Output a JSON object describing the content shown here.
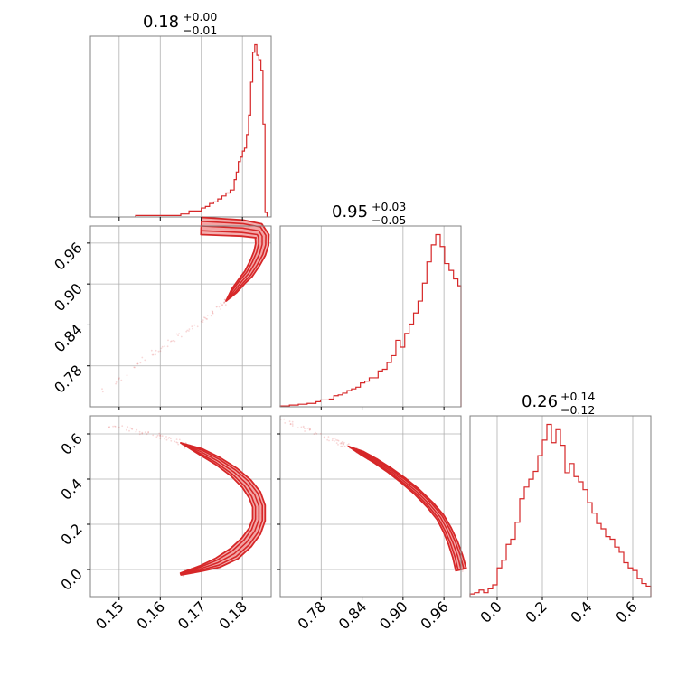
{
  "colors": {
    "series": "#d62728",
    "light": "#f2a0a0",
    "grid": "#b0b0b0",
    "frame": "#808080"
  },
  "chart_data": [
    {
      "type": "histogram",
      "panel": "1-1",
      "summary": {
        "median": "0.18",
        "plus": "+0.00",
        "minus": "−0.01"
      },
      "x_range": [
        0.143,
        0.187
      ],
      "x_ticks": [
        0.15,
        0.16,
        0.17,
        0.18
      ],
      "x_tick_labels": [
        "0.15",
        "0.16",
        "0.17",
        "0.18"
      ],
      "bins": {
        "edges": [
          0.154,
          0.165,
          0.167,
          0.17,
          0.171,
          0.172,
          0.173,
          0.174,
          0.175,
          0.176,
          0.177,
          0.178,
          0.1785,
          0.179,
          0.1795,
          0.18,
          0.1805,
          0.181,
          0.1815,
          0.182,
          0.1825,
          0.183,
          0.1835,
          0.184,
          0.1845,
          0.185,
          0.1855,
          0.186
        ],
        "counts": [
          1,
          2,
          4,
          6,
          7,
          9,
          10,
          12,
          14,
          16,
          18,
          25,
          30,
          37,
          40,
          44,
          46,
          55,
          68,
          90,
          110,
          115,
          108,
          105,
          98,
          62,
          3
        ]
      },
      "peak_count": 115
    },
    {
      "type": "histogram",
      "panel": "2-2",
      "summary": {
        "median": "0.95",
        "plus": "+0.03",
        "minus": "−0.05"
      },
      "x_range": [
        0.72,
        0.985
      ],
      "x_ticks": [
        0.78,
        0.84,
        0.9,
        0.96
      ],
      "x_tick_labels": [
        "0.78",
        "0.84",
        "0.90",
        "0.96"
      ],
      "bins": {
        "edges": [
          0.72,
          0.7335,
          0.74,
          0.7465,
          0.753,
          0.7595,
          0.766,
          0.7725,
          0.779,
          0.7855,
          0.792,
          0.7985,
          0.805,
          0.8115,
          0.818,
          0.8245,
          0.831,
          0.8375,
          0.844,
          0.8505,
          0.857,
          0.8635,
          0.87,
          0.8765,
          0.883,
          0.8895,
          0.896,
          0.9025,
          0.909,
          0.9155,
          0.922,
          0.9285,
          0.935,
          0.9415,
          0.948,
          0.9545,
          0.961,
          0.9675,
          0.974,
          0.9805,
          0.985
        ],
        "counts": [
          1,
          2,
          2,
          3,
          3,
          4,
          4,
          6,
          8,
          8,
          9,
          13,
          14,
          16,
          19,
          21,
          23,
          28,
          30,
          34,
          34,
          42,
          44,
          52,
          60,
          78,
          70,
          86,
          97,
          110,
          124,
          145,
          170,
          190,
          202,
          188,
          168,
          160,
          150,
          142
        ]
      },
      "peak_count": 202
    },
    {
      "type": "histogram",
      "panel": "3-3",
      "summary": {
        "median": "0.26",
        "plus": "+0.14",
        "minus": "−0.12"
      },
      "x_range": [
        -0.12,
        0.68
      ],
      "x_ticks": [
        0.0,
        0.2,
        0.4,
        0.6
      ],
      "x_tick_labels": [
        "0.0",
        "0.2",
        "0.4",
        "0.6"
      ],
      "bins": {
        "edges": [
          -0.12,
          -0.1,
          -0.08,
          -0.06,
          -0.04,
          -0.02,
          0.0,
          0.02,
          0.04,
          0.06,
          0.08,
          0.1,
          0.12,
          0.14,
          0.16,
          0.18,
          0.2,
          0.22,
          0.24,
          0.26,
          0.28,
          0.3,
          0.32,
          0.34,
          0.36,
          0.38,
          0.4,
          0.42,
          0.44,
          0.46,
          0.48,
          0.5,
          0.52,
          0.54,
          0.56,
          0.58,
          0.6,
          0.62,
          0.64,
          0.66,
          0.68
        ],
        "counts": [
          2,
          3,
          5,
          3,
          6,
          9,
          22,
          28,
          40,
          44,
          57,
          75,
          84,
          90,
          96,
          108,
          120,
          132,
          118,
          128,
          116,
          95,
          102,
          92,
          88,
          82,
          72,
          64,
          56,
          52,
          46,
          44,
          38,
          34,
          26,
          22,
          20,
          14,
          10,
          8
        ]
      },
      "peak_count": 132
    },
    {
      "type": "contour",
      "panel": "2-1",
      "x_range": [
        0.143,
        0.187
      ],
      "y_range": [
        0.72,
        0.985
      ],
      "y_ticks": [
        0.78,
        0.84,
        0.9,
        0.96
      ],
      "y_tick_labels": [
        "0.78",
        "0.84",
        "0.90",
        "0.96"
      ],
      "ridge": [
        [
          0.146,
          0.74
        ],
        [
          0.15,
          0.76
        ],
        [
          0.155,
          0.785
        ],
        [
          0.16,
          0.805
        ],
        [
          0.165,
          0.825
        ],
        [
          0.17,
          0.845
        ],
        [
          0.173,
          0.86
        ],
        [
          0.176,
          0.875
        ],
        [
          0.178,
          0.89
        ],
        [
          0.18,
          0.905
        ],
        [
          0.1815,
          0.915
        ],
        [
          0.183,
          0.93
        ],
        [
          0.1842,
          0.945
        ],
        [
          0.1848,
          0.958
        ],
        [
          0.1848,
          0.97
        ],
        [
          0.184,
          0.978
        ],
        [
          0.18,
          0.982
        ],
        [
          0.17,
          0.985
        ]
      ]
    },
    {
      "type": "contour",
      "panel": "3-1",
      "x_range": [
        0.143,
        0.187
      ],
      "y_range": [
        -0.12,
        0.68
      ],
      "y_ticks": [
        0.0,
        0.2,
        0.4,
        0.6
      ],
      "y_tick_labels": [
        "0.0",
        "0.2",
        "0.4",
        "0.6"
      ],
      "ridge": [
        [
          0.147,
          0.64
        ],
        [
          0.15,
          0.63
        ],
        [
          0.155,
          0.61
        ],
        [
          0.16,
          0.59
        ],
        [
          0.165,
          0.56
        ],
        [
          0.17,
          0.52
        ],
        [
          0.174,
          0.48
        ],
        [
          0.178,
          0.43
        ],
        [
          0.181,
          0.38
        ],
        [
          0.183,
          0.33
        ],
        [
          0.184,
          0.28
        ],
        [
          0.184,
          0.22
        ],
        [
          0.183,
          0.17
        ],
        [
          0.181,
          0.12
        ],
        [
          0.178,
          0.07
        ],
        [
          0.174,
          0.03
        ],
        [
          0.17,
          0.005
        ],
        [
          0.165,
          -0.02
        ]
      ]
    },
    {
      "type": "contour",
      "panel": "3-2",
      "x_range": [
        0.72,
        0.985
      ],
      "y_range": [
        -0.12,
        0.68
      ],
      "ridge": [
        [
          0.722,
          0.665
        ],
        [
          0.74,
          0.64
        ],
        [
          0.76,
          0.62
        ],
        [
          0.78,
          0.595
        ],
        [
          0.8,
          0.57
        ],
        [
          0.82,
          0.545
        ],
        [
          0.84,
          0.515
        ],
        [
          0.86,
          0.48
        ],
        [
          0.88,
          0.44
        ],
        [
          0.9,
          0.395
        ],
        [
          0.92,
          0.345
        ],
        [
          0.94,
          0.285
        ],
        [
          0.955,
          0.23
        ],
        [
          0.965,
          0.175
        ],
        [
          0.973,
          0.12
        ],
        [
          0.98,
          0.06
        ],
        [
          0.985,
          0.0
        ]
      ]
    }
  ]
}
